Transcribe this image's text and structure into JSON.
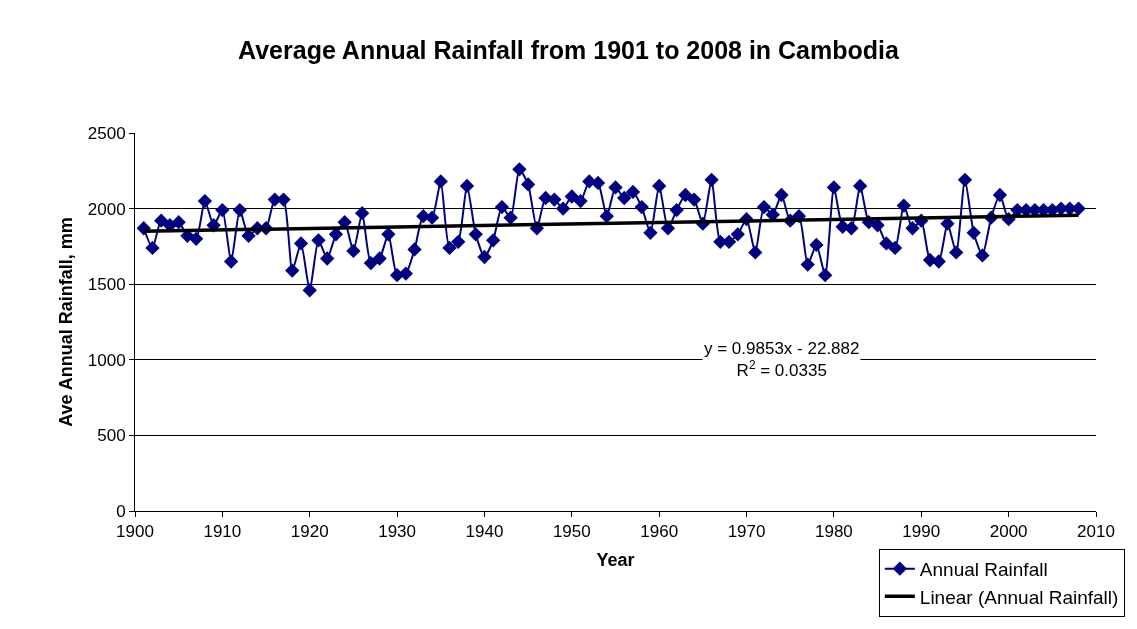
{
  "chart_data": {
    "type": "line",
    "title": "Average Annual Rainfall from 1901 to 2008 in Cambodia",
    "xlabel": "Year",
    "ylabel": "Ave Annual Rainfall, mm",
    "x": [
      1901,
      1902,
      1903,
      1904,
      1905,
      1906,
      1907,
      1908,
      1909,
      1910,
      1911,
      1912,
      1913,
      1914,
      1915,
      1916,
      1917,
      1918,
      1919,
      1920,
      1921,
      1922,
      1923,
      1924,
      1925,
      1926,
      1927,
      1928,
      1929,
      1930,
      1931,
      1932,
      1933,
      1934,
      1935,
      1936,
      1937,
      1938,
      1939,
      1940,
      1941,
      1942,
      1943,
      1944,
      1945,
      1946,
      1947,
      1948,
      1949,
      1950,
      1951,
      1952,
      1953,
      1954,
      1955,
      1956,
      1957,
      1958,
      1959,
      1960,
      1961,
      1962,
      1963,
      1964,
      1965,
      1966,
      1967,
      1968,
      1969,
      1970,
      1971,
      1972,
      1973,
      1974,
      1975,
      1976,
      1977,
      1978,
      1979,
      1980,
      1981,
      1982,
      1983,
      1984,
      1985,
      1986,
      1987,
      1988,
      1989,
      1990,
      1991,
      1992,
      1993,
      1994,
      1995,
      1996,
      1997,
      1998,
      1999,
      2000,
      2001,
      2002,
      2003,
      2004,
      2005,
      2006,
      2007,
      2008
    ],
    "series": [
      {
        "name": "Annual Rainfall",
        "color": "#000080",
        "marker": "diamond",
        "line_style": "solid",
        "values": [
          1870,
          1740,
          1920,
          1890,
          1910,
          1820,
          1800,
          2050,
          1890,
          1990,
          1650,
          1990,
          1820,
          1870,
          1870,
          2060,
          2060,
          1590,
          1770,
          1460,
          1790,
          1670,
          1830,
          1910,
          1720,
          1970,
          1640,
          1670,
          1830,
          1560,
          1570,
          1730,
          1950,
          1940,
          2180,
          1740,
          1780,
          2150,
          1830,
          1680,
          1790,
          2010,
          1940,
          2260,
          2160,
          1870,
          2070,
          2060,
          2000,
          2080,
          2050,
          2180,
          2170,
          1950,
          2140,
          2070,
          2110,
          2010,
          1840,
          2150,
          1870,
          1990,
          2090,
          2060,
          1900,
          2190,
          1780,
          1780,
          1830,
          1930,
          1710,
          2010,
          1960,
          2090,
          1920,
          1950,
          1630,
          1760,
          1560,
          2140,
          1880,
          1870,
          2150,
          1910,
          1890,
          1770,
          1740,
          2020,
          1870,
          1920,
          1660,
          1650,
          1900,
          1710,
          2190,
          1840,
          1690,
          1940,
          2090,
          1930,
          1990,
          1990,
          1990,
          1990,
          1990,
          2000,
          2000,
          2000
        ]
      },
      {
        "name": "Linear (Annual Rainfall)",
        "color": "#000000",
        "type": "line",
        "marker": "none",
        "line_style": "solid",
        "x": [
          1901,
          2008
        ],
        "values": [
          1850,
          1956
        ]
      }
    ],
    "annotations": [
      "y = 0.9853x - 22.882\nR$^{2}$ = 0.0335"
    ],
    "xlim": [
      1900,
      2010
    ],
    "xticks": [
      1900,
      1910,
      1920,
      1930,
      1940,
      1950,
      1960,
      1970,
      1980,
      1990,
      2000,
      2010
    ],
    "ylim": [
      0,
      2500
    ],
    "yticks": [
      0,
      500,
      1000,
      1500,
      2000,
      2500
    ],
    "grid": "y",
    "legend": "bottom right"
  }
}
